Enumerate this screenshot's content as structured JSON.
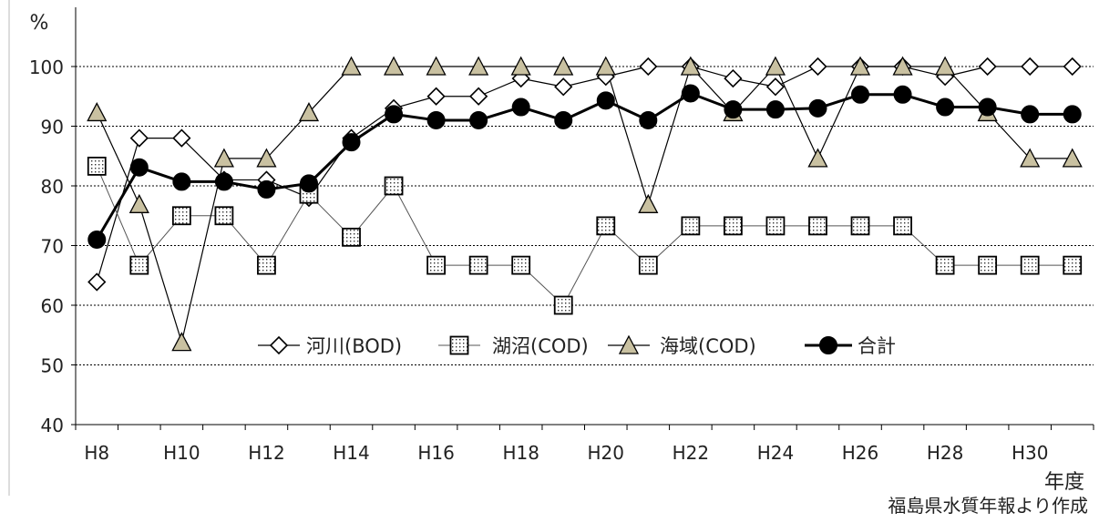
{
  "chart_data": {
    "type": "line",
    "ylabel": "%",
    "xlabel": "年度",
    "ylim": [
      40,
      100
    ],
    "yticks": [
      40,
      50,
      60,
      70,
      80,
      90,
      100
    ],
    "grid": true,
    "legend_position": "center",
    "x": [
      "H8",
      "H9",
      "H10",
      "H11",
      "H12",
      "H13",
      "H14",
      "H15",
      "H16",
      "H17",
      "H18",
      "H19",
      "H20",
      "H21",
      "H22",
      "H23",
      "H24",
      "H25",
      "H26",
      "H27",
      "H28",
      "H29",
      "H30",
      "H31"
    ],
    "xtick_labels": [
      "H8",
      "H10",
      "H12",
      "H14",
      "H16",
      "H18",
      "H20",
      "H22",
      "H24",
      "H26",
      "H28",
      "H30"
    ],
    "series": [
      {
        "name": "河川(BOD)",
        "marker": "diamond",
        "color": "#000000",
        "fill": "#ffffff",
        "line_width": 1.2,
        "values": [
          63.9,
          88,
          88,
          81,
          81,
          78,
          88,
          93,
          95,
          95,
          98,
          96.6,
          98.3,
          100,
          100,
          98,
          96.6,
          100,
          100,
          100,
          98.3,
          100,
          100,
          100
        ]
      },
      {
        "name": "湖沼(COD)",
        "marker": "square",
        "color": "#555555",
        "fill": "#ffffff",
        "line_width": 1,
        "values": [
          83.3,
          66.7,
          75,
          75,
          66.7,
          78.6,
          71.4,
          80,
          66.7,
          66.7,
          66.7,
          60,
          73.3,
          66.7,
          73.3,
          73.3,
          73.3,
          73.3,
          73.3,
          73.3,
          66.7,
          66.7,
          66.7,
          66.7
        ]
      },
      {
        "name": "海域(COD)",
        "marker": "triangle",
        "color": "#000000",
        "fill": "#c9c1a1",
        "line_width": 1.2,
        "values": [
          92.3,
          76.9,
          53.8,
          84.6,
          84.6,
          92.3,
          100,
          100,
          100,
          100,
          100,
          100,
          100,
          76.9,
          100,
          92.3,
          100,
          84.6,
          100,
          100,
          100,
          92.3,
          84.6,
          84.6
        ]
      },
      {
        "name": "合計",
        "marker": "circle",
        "color": "#000000",
        "fill": "#000000",
        "line_width": 3,
        "values": [
          71,
          83.1,
          80.7,
          80.7,
          79.4,
          80.4,
          87.3,
          92,
          91,
          91,
          93.2,
          91,
          94.3,
          91,
          95.5,
          92.8,
          92.8,
          93,
          95.3,
          95.3,
          93.2,
          93.2,
          92,
          92
        ]
      }
    ]
  },
  "source_note": "福島県水質年報より作成"
}
